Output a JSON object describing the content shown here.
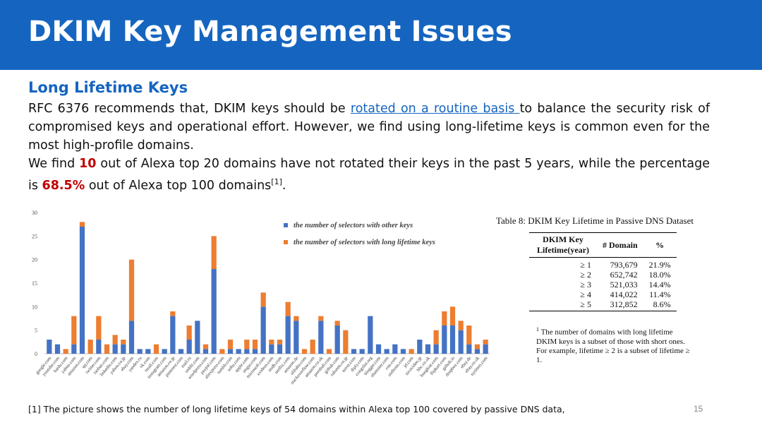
{
  "slide": {
    "title": "DKIM Key Management Issues",
    "subtitle": "Long Lifetime Keys",
    "para1_a": "RFC 6376 recommends that, DKIM keys should be ",
    "para1_link": "rotated on a routine basis ",
    "para1_b": "to balance the security risk of compromised keys and operational effort. However, we find using long-lifetime keys is common even for the most high-profile domains.",
    "para2_a": "We find ",
    "para2_num": "10",
    "para2_b": " out of Alexa top 20 domains have not rotated their keys in the past 5 years, while the percentage is ",
    "para2_pct": "68.5%",
    "para2_c": " out of Alexa top 100 domains",
    "para2_sup": "[1]",
    "para2_end": ".",
    "reference": "[1] The picture shows the number of long lifetime keys of 54 domains within Alexa top 100 covered by passive DNS data,",
    "page_number": "15",
    "colors": {
      "header": "#1565c0",
      "other_keys": "#4472c4",
      "long_keys": "#ed7d31",
      "highlight": "#c00000"
    }
  },
  "table": {
    "caption": "Table 8:  DKIM Key Lifetime in Passive DNS Dataset",
    "headers": [
      "DKIM Key Lifetime(year)",
      "# Domain",
      "%"
    ],
    "rows": [
      [
        "≥ 1",
        "793,679",
        "21.9%"
      ],
      [
        "≥ 2",
        "652,742",
        "18.0%"
      ],
      [
        "≥ 3",
        "521,033",
        "14.4%"
      ],
      [
        "≥ 4",
        "414,022",
        "11.4%"
      ],
      [
        "≥ 5",
        "312,852",
        "8.6%"
      ]
    ],
    "footnote_mark": "1",
    "footnote": "The number of domains with long lifetime DKIM keys is a subset of those with short ones. For example, lifetime ≥ 2 is a subset of lifetime ≥ 1."
  },
  "chart_data": {
    "type": "bar",
    "stacked": true,
    "ylim": [
      0,
      30
    ],
    "yticks": [
      0,
      5,
      10,
      15,
      20,
      25,
      30
    ],
    "grid": false,
    "legend_position": "top-right",
    "categories": [
      "google.com",
      "youtube.com",
      "baidu.com",
      "yahoo.com",
      "amazon.com",
      "qq.com",
      "twitter.com",
      "taobao.com",
      "linkedin.com",
      "yahoo.co.jp",
      "ebay.com",
      "yandex.ru",
      "vk.com",
      "tmall.com",
      "instagram.com",
      "amazon.co.jp",
      "pinterest.com",
      "mail.ru",
      "reddit.com",
      "wordpress.com",
      "paypal.com",
      "aliexpress.com",
      "tumblr.com",
      "sohu.com",
      "apple.com",
      "imgur.com",
      "microsoft.com",
      "xvideos.com",
      "imdb.com",
      "netflix.com",
      "amazon.de",
      "alibaba.com",
      "stackoverflow.com",
      "amazon.co.uk",
      "pornhub.com",
      "github.com",
      "rakuten.co.jp",
      "naver.com",
      "diply.com",
      "craigslist.org",
      "blogger.com",
      "xhamster.com",
      "cnn.com",
      "outbrain.com",
      "jd.com",
      "nicovideo.jp",
      "bbc.co.uk",
      "hongkiat.com",
      "flipkart.com",
      "github.io",
      "dropbox.com",
      "ebay.de",
      "ebay.co.uk",
      "nytimes.com"
    ],
    "series": [
      {
        "name": "the number of selectors with other keys",
        "values": [
          3,
          2,
          0,
          2,
          27,
          0,
          3,
          0,
          2,
          2,
          7,
          1,
          1,
          0,
          1,
          8,
          1,
          3,
          7,
          1,
          18,
          0,
          1,
          1,
          1,
          1,
          10,
          2,
          2,
          8,
          7,
          0,
          0,
          7,
          0,
          6,
          0,
          1,
          1,
          8,
          2,
          1,
          2,
          1,
          0,
          3,
          2,
          2,
          6,
          6,
          5,
          2,
          1,
          2
        ]
      },
      {
        "name": "the number of selectors with long lifetime keys",
        "values": [
          0,
          0,
          1,
          6,
          1,
          3,
          5,
          2,
          2,
          1,
          13,
          0,
          0,
          2,
          0,
          1,
          0,
          3,
          0,
          1,
          7,
          1,
          2,
          0,
          2,
          2,
          3,
          1,
          1,
          3,
          1,
          1,
          3,
          1,
          1,
          1,
          5,
          0,
          0,
          0,
          0,
          0,
          0,
          0,
          1,
          0,
          0,
          3,
          3,
          4,
          2,
          4,
          1,
          1
        ]
      }
    ]
  }
}
